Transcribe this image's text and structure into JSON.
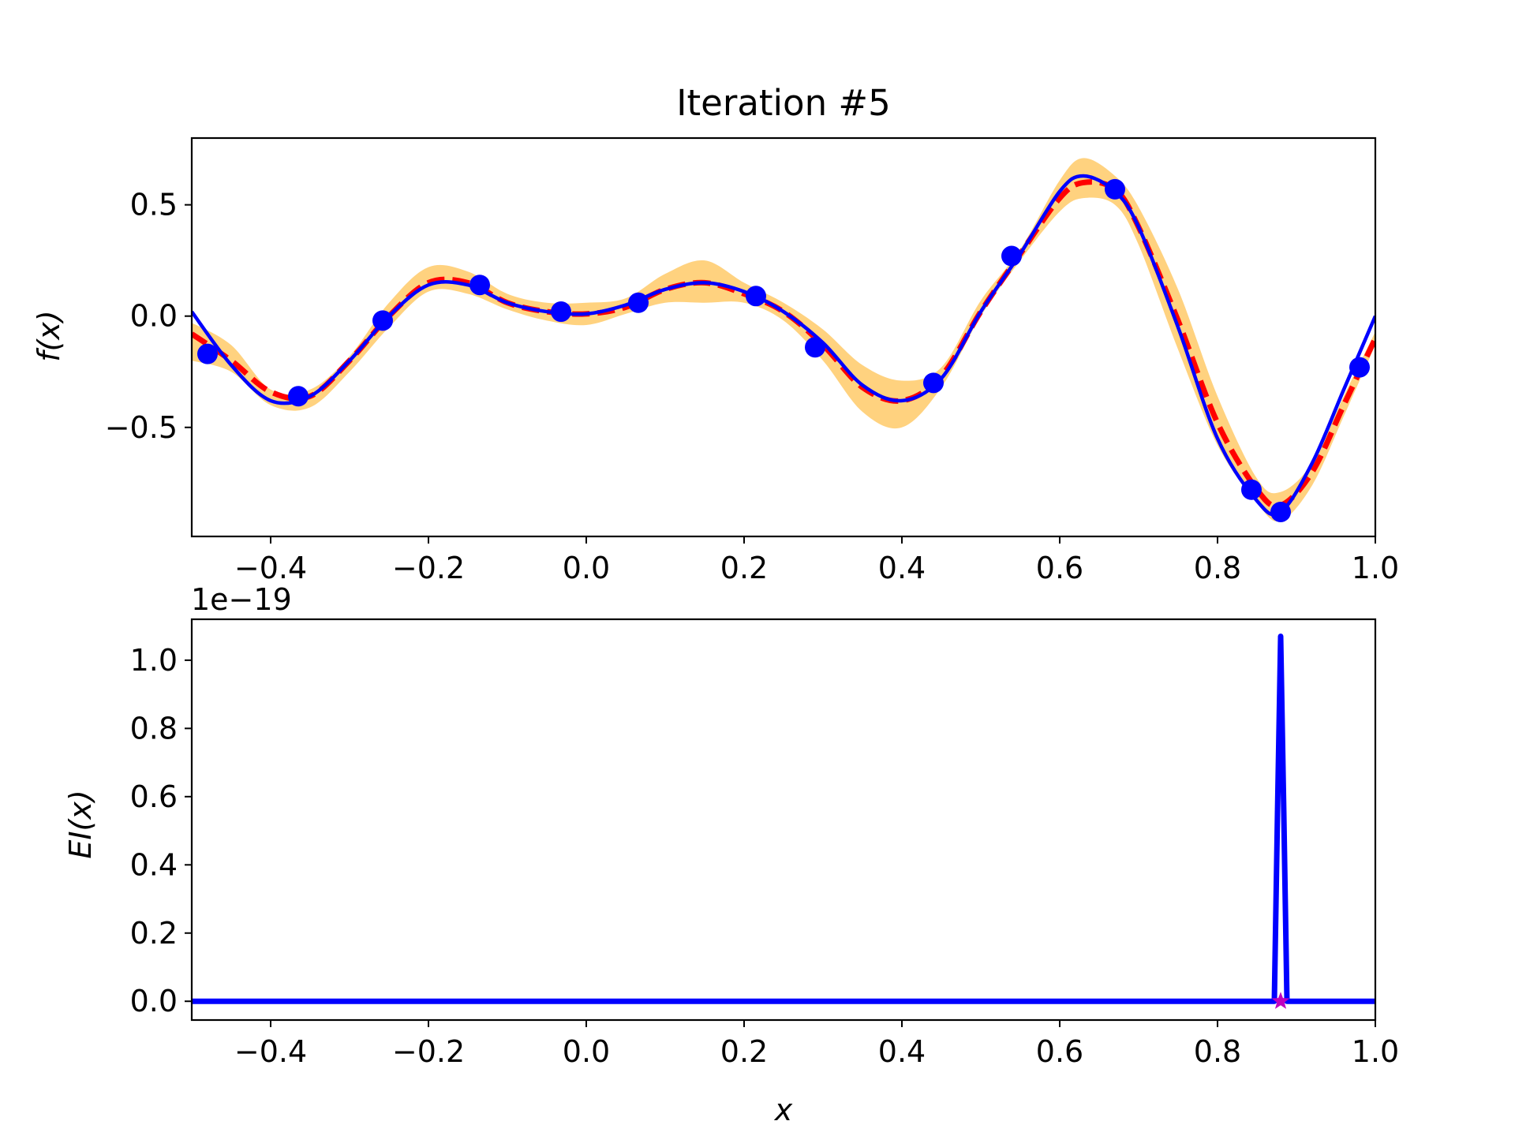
{
  "chart_data": [
    {
      "type": "line",
      "title": "Iteration #5",
      "xlabel": "x",
      "ylabel": "f(x)",
      "xlim": [
        -0.5,
        1.0
      ],
      "ylim": [
        -0.99,
        0.8
      ],
      "xticks": [
        -0.4,
        -0.2,
        0.0,
        0.2,
        0.4,
        0.6,
        0.8,
        1.0
      ],
      "xtick_labels": [
        "−0.4",
        "−0.2",
        "0.0",
        "0.2",
        "0.4",
        "0.6",
        "0.8",
        "1.0"
      ],
      "yticks": [
        -0.5,
        0.0,
        0.5
      ],
      "ytick_labels": [
        "−0.5",
        "0.0",
        "0.5"
      ],
      "grid": false,
      "legend": "none",
      "x": [
        -0.5,
        -0.45,
        -0.4,
        -0.35,
        -0.3,
        -0.25,
        -0.2,
        -0.15,
        -0.1,
        -0.05,
        0.0,
        0.05,
        0.1,
        0.15,
        0.2,
        0.25,
        0.3,
        0.35,
        0.4,
        0.45,
        0.5,
        0.55,
        0.6,
        0.63,
        0.67,
        0.7,
        0.75,
        0.8,
        0.85,
        0.88,
        0.92,
        0.96,
        1.0
      ],
      "series": [
        {
          "kind": "band",
          "color": "#ffd27f",
          "lower": [
            -0.2,
            -0.25,
            -0.4,
            -0.41,
            -0.25,
            -0.05,
            0.11,
            0.1,
            0.03,
            -0.02,
            -0.04,
            0.01,
            0.06,
            0.06,
            0.06,
            -0.02,
            -0.2,
            -0.43,
            -0.5,
            -0.32,
            0.0,
            0.25,
            0.47,
            0.53,
            0.5,
            0.32,
            -0.15,
            -0.58,
            -0.84,
            -0.92,
            -0.76,
            -0.45,
            -0.13
          ],
          "upper": [
            -0.03,
            -0.13,
            -0.33,
            -0.33,
            -0.18,
            0.06,
            0.22,
            0.2,
            0.1,
            0.06,
            0.06,
            0.08,
            0.19,
            0.25,
            0.15,
            0.06,
            -0.06,
            -0.22,
            -0.29,
            -0.23,
            0.07,
            0.3,
            0.61,
            0.71,
            0.63,
            0.49,
            0.12,
            -0.36,
            -0.73,
            -0.79,
            -0.66,
            -0.36,
            -0.07
          ]
        },
        {
          "kind": "line",
          "style": "dashed",
          "color": "#ff0000",
          "values": [
            -0.08,
            -0.2,
            -0.34,
            -0.36,
            -0.2,
            0.0,
            0.15,
            0.15,
            0.06,
            0.02,
            0.01,
            0.04,
            0.12,
            0.15,
            0.1,
            0.02,
            -0.13,
            -0.32,
            -0.38,
            -0.27,
            0.02,
            0.28,
            0.53,
            0.6,
            0.57,
            0.4,
            -0.02,
            -0.48,
            -0.78,
            -0.85,
            -0.7,
            -0.4,
            -0.1
          ]
        },
        {
          "kind": "line",
          "style": "solid",
          "color": "#0000ff",
          "values": [
            0.02,
            -0.22,
            -0.38,
            -0.36,
            -0.2,
            0.0,
            0.14,
            0.14,
            0.06,
            0.02,
            0.01,
            0.05,
            0.12,
            0.15,
            0.11,
            0.02,
            -0.12,
            -0.31,
            -0.38,
            -0.28,
            0.02,
            0.28,
            0.56,
            0.63,
            0.56,
            0.4,
            -0.05,
            -0.55,
            -0.83,
            -0.88,
            -0.66,
            -0.33,
            0.0
          ]
        },
        {
          "kind": "scatter",
          "color": "#0000ff",
          "x": [
            -0.48,
            -0.365,
            -0.258,
            -0.135,
            -0.032,
            0.066,
            0.215,
            0.29,
            0.44,
            0.539,
            0.67,
            0.843,
            0.88,
            0.98
          ],
          "y": [
            -0.17,
            -0.36,
            -0.02,
            0.14,
            0.02,
            0.06,
            0.09,
            -0.14,
            -0.3,
            0.27,
            0.57,
            -0.78,
            -0.88,
            -0.23
          ]
        }
      ]
    },
    {
      "type": "line",
      "title": "",
      "xlabel": "x",
      "ylabel": "EI(x)",
      "scale_label": "1e−19",
      "xlim": [
        -0.5,
        1.0
      ],
      "ylim": [
        -0.055,
        1.12
      ],
      "xticks": [
        -0.4,
        -0.2,
        0.0,
        0.2,
        0.4,
        0.6,
        0.8,
        1.0
      ],
      "xtick_labels": [
        "−0.4",
        "−0.2",
        "0.0",
        "0.2",
        "0.4",
        "0.6",
        "0.8",
        "1.0"
      ],
      "yticks": [
        0.0,
        0.2,
        0.4,
        0.6,
        0.8,
        1.0
      ],
      "ytick_labels": [
        "0.0",
        "0.2",
        "0.4",
        "0.6",
        "0.8",
        "1.0"
      ],
      "grid": false,
      "legend": "none",
      "series": [
        {
          "kind": "line",
          "color": "#0000ff",
          "x": [
            -0.5,
            0.868,
            0.872,
            0.876,
            0.88,
            0.884,
            0.888,
            0.892,
            1.0
          ],
          "values": [
            0.0,
            0.0,
            0.0,
            0.55,
            1.07,
            0.55,
            0.0,
            0.0,
            0.0
          ]
        },
        {
          "kind": "marker",
          "marker": "star",
          "color": "#bf00bf",
          "x": [
            0.88
          ],
          "y": [
            0.0
          ]
        }
      ]
    }
  ]
}
